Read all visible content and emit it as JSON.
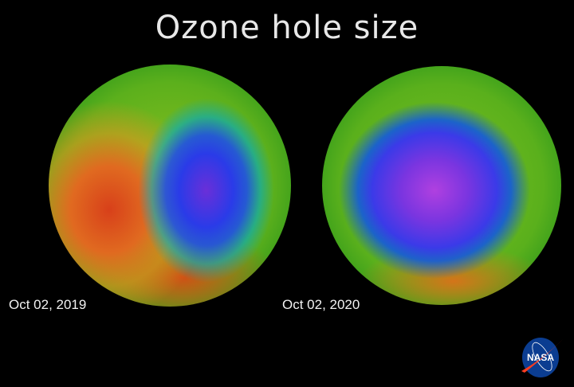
{
  "title": "Ozone hole size",
  "panels": [
    {
      "date": "Oct 02, 2019"
    },
    {
      "date": "Oct 02, 2020"
    }
  ],
  "logo": {
    "text": "NASA",
    "colors": {
      "blue": "#0b3d91",
      "red": "#fc3d21"
    }
  }
}
